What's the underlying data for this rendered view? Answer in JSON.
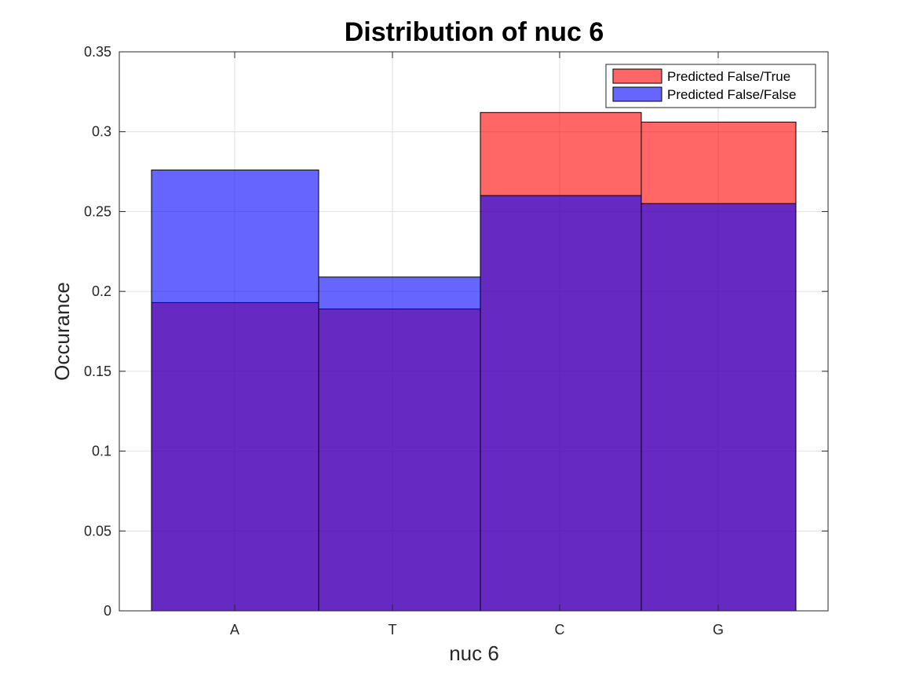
{
  "chart_data": {
    "type": "bar",
    "title": "Distribution of nuc 6",
    "xlabel": "nuc 6",
    "ylabel": "Occurance",
    "categories": [
      "A",
      "T",
      "C",
      "G"
    ],
    "ylim": [
      0,
      0.35
    ],
    "yticks": [
      0,
      0.05,
      0.1,
      0.15,
      0.2,
      0.25,
      0.3,
      0.35
    ],
    "ytick_labels": [
      "0",
      "0.05",
      "0.1",
      "0.15",
      "0.2",
      "0.25",
      "0.3",
      "0.35"
    ],
    "grid": true,
    "legend_position": "top-right",
    "overlay": true,
    "series": [
      {
        "name": "Predicted False/True",
        "values": [
          0.193,
          0.189,
          0.312,
          0.306
        ],
        "color": "#FF0000",
        "alpha": 0.6
      },
      {
        "name": "Predicted False/False",
        "values": [
          0.276,
          0.209,
          0.26,
          0.255
        ],
        "color": "#0000FF",
        "alpha": 0.6
      }
    ]
  }
}
